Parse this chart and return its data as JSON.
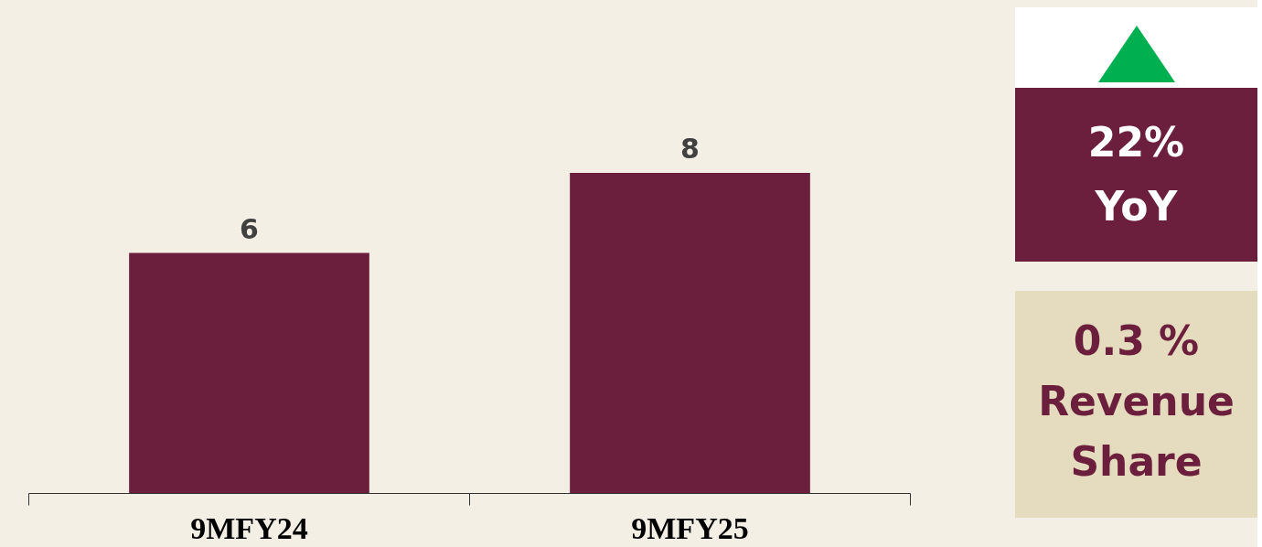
{
  "chart_data": {
    "type": "bar",
    "categories": [
      "9MFY24",
      "9MFY25"
    ],
    "values": [
      6,
      8
    ],
    "color": "#6b1f3d",
    "ylim": [
      0,
      12.3
    ],
    "data_labels": true,
    "grid": false,
    "annotations": [
      "22%",
      "YoY",
      "0.3 %",
      "Revenue Share"
    ]
  }
}
